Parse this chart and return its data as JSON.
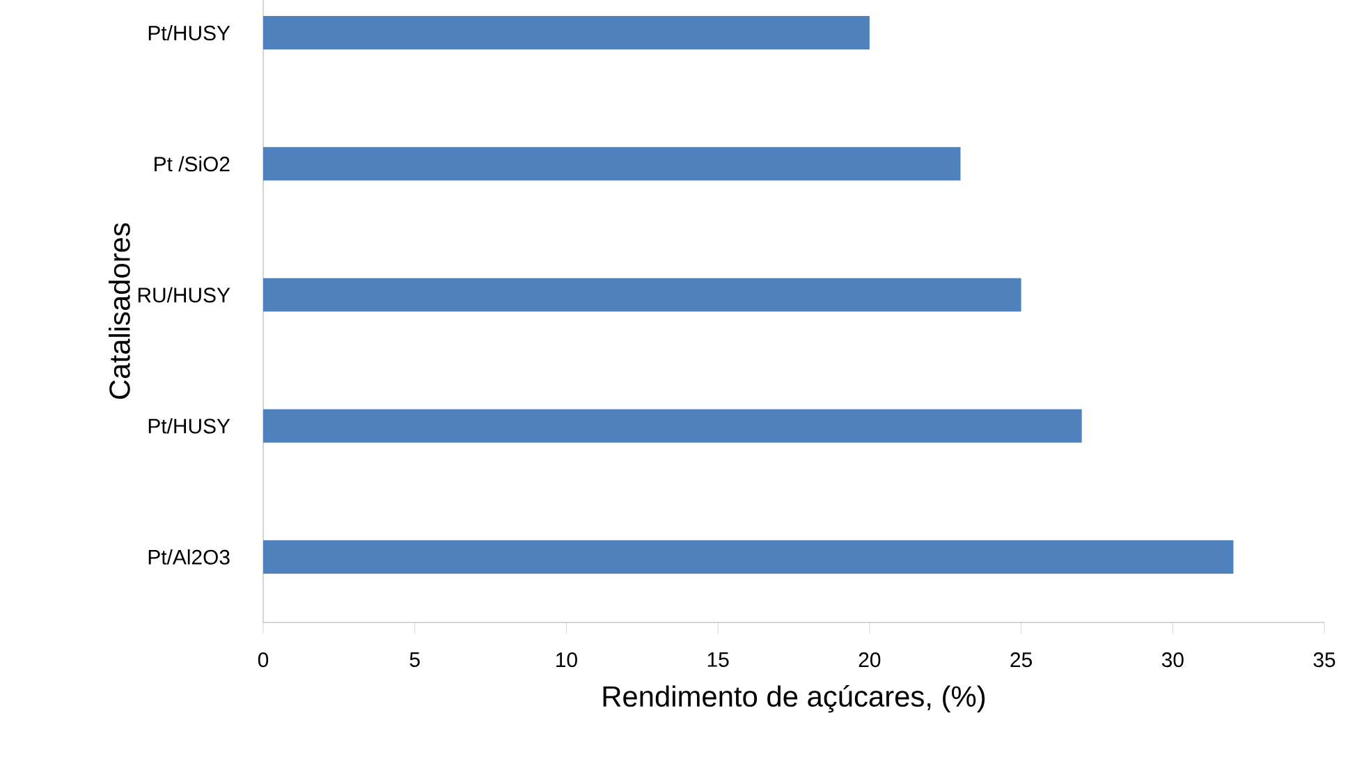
{
  "chart_data": {
    "type": "bar",
    "orientation": "horizontal",
    "categories": [
      "Pt/HUSY",
      "Pt /SiO2",
      "RU/HUSY",
      "Pt/HUSY",
      "Pt/Al2O3"
    ],
    "values": [
      20,
      23,
      25,
      27,
      32
    ],
    "color": "#4f81bd",
    "xlim": [
      0,
      35
    ],
    "xticks": [
      0,
      5,
      10,
      15,
      20,
      25,
      30,
      35
    ],
    "xlabel": "Rendimento de açúcares, (%)",
    "ylabel": "Catalisadores"
  }
}
